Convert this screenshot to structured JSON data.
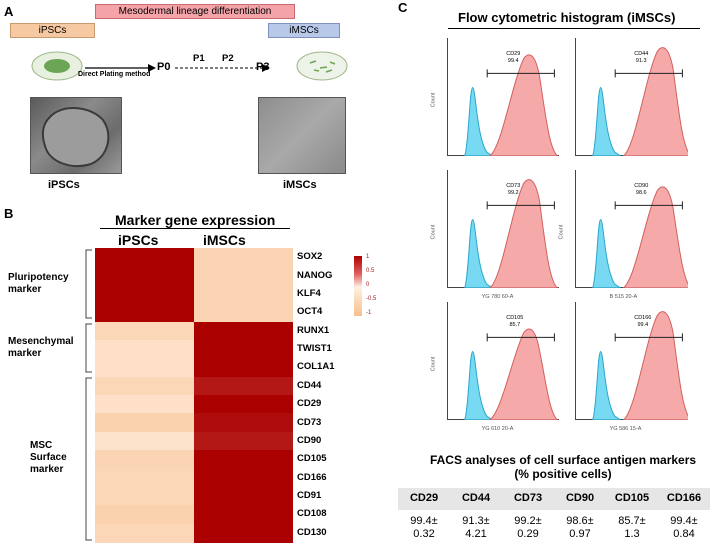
{
  "panelA": {
    "letter": "A",
    "bar_top": "Mesodermal lineage differentiation",
    "bar_ipsc": "iPSCs",
    "bar_imsc": "iMSCs",
    "method": "Direct Plating method",
    "passages": [
      "P0",
      "P1",
      "P2",
      "P3"
    ],
    "label_ipsc": "iPSCs",
    "label_imsc": "iMSCs",
    "colors": {
      "top": "#f4a3a8",
      "ipsc": "#f7c9a2",
      "imsc": "#b7c8e8"
    }
  },
  "panelB": {
    "letter": "B",
    "title": "Marker gene expression",
    "col_ipsc": "iPSCs",
    "col_imsc": "iMSCs",
    "sections": [
      {
        "label": "Pluripotency\nmarker"
      },
      {
        "label": "Mesenchymal\nmarker"
      },
      {
        "label": "MSC\nSurface\nmarker"
      }
    ],
    "genes": [
      "SOX2",
      "NANOG",
      "KLF4",
      "OCT4",
      "RUNX1",
      "TWIST1",
      "COL1A1",
      "CD44",
      "CD29",
      "CD73",
      "CD90",
      "CD105",
      "CD166",
      "CD91",
      "CD108",
      "CD130"
    ],
    "ipsc_values": [
      1,
      1,
      1,
      1,
      -0.45,
      -0.3,
      -0.3,
      -0.45,
      -0.3,
      -0.55,
      -0.25,
      -0.5,
      -0.45,
      -0.45,
      -0.55,
      -0.45
    ],
    "imsc_values": [
      -0.5,
      -0.5,
      -0.5,
      -0.5,
      1,
      1,
      1,
      0.9,
      1,
      0.95,
      0.9,
      1,
      1,
      1,
      1,
      1
    ],
    "legend_ticks": [
      "1",
      "0.5",
      "0",
      "-0.5",
      "-1"
    ]
  },
  "panelC": {
    "letter": "C",
    "title": "Flow cytometric histogram (iMSCs)",
    "plots": [
      {
        "marker": "CD29",
        "pct": "99.4",
        "xlabel": "",
        "ylabel": "Count"
      },
      {
        "marker": "CD44",
        "pct": "91.3",
        "xlabel": "",
        "ylabel": ""
      },
      {
        "marker": "CD73",
        "pct": "99.2",
        "xlabel": "YG 780 60-A",
        "ylabel": "Count"
      },
      {
        "marker": "CD90",
        "pct": "98.6",
        "xlabel": "B 515 20-A",
        "ylabel": "Count"
      },
      {
        "marker": "CD105",
        "pct": "85.7",
        "xlabel": "YG 610 20-A",
        "ylabel": "Count"
      },
      {
        "marker": "CD166",
        "pct": "99.4",
        "xlabel": "YG 586 15-A",
        "ylabel": ""
      }
    ],
    "table_title": "FACS analyses of cell surface antigen markers\n(% positive cells)",
    "table_headers": [
      "CD29",
      "CD44",
      "CD73",
      "CD90",
      "CD105",
      "CD166"
    ],
    "table_means": [
      "99.4±",
      "91.3±",
      "99.2±",
      "98.6±",
      "85.7±",
      "99.4±"
    ],
    "table_sds": [
      "0.32",
      "4.21",
      "0.29",
      "0.97",
      "1.3",
      "0.84"
    ]
  }
}
